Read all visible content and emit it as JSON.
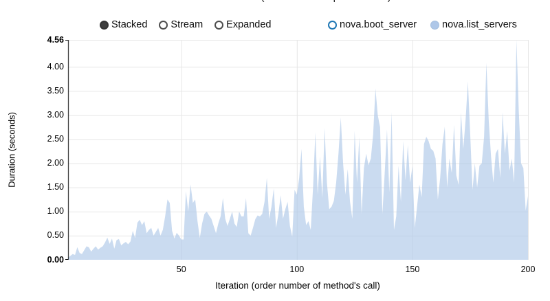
{
  "title_clipped": "Durations (atomic actions per iteration)",
  "controls": {
    "items": [
      {
        "label": "Stacked",
        "selected": true
      },
      {
        "label": "Stream",
        "selected": false
      },
      {
        "label": "Expanded",
        "selected": false
      }
    ]
  },
  "legend": {
    "items": [
      {
        "label": "nova.boot_server",
        "color": "#1f77b4",
        "enabled": false
      },
      {
        "label": "nova.list_servers",
        "color": "#aec7e8",
        "enabled": true
      }
    ]
  },
  "colors": {
    "area_fill": "#aec7e8",
    "area_fill_opacity": 0.65,
    "gridline": "#e6e6e6",
    "axis_line": "#000000",
    "boot_server_accent": "#1f77b4"
  },
  "chart_data": {
    "type": "area",
    "title": "",
    "xlabel": "Iteration (order number of method's call)",
    "ylabel": "Duration (seconds)",
    "x_range": [
      1,
      200
    ],
    "y_range": [
      0,
      4.56
    ],
    "grid": true,
    "legend_position": "top",
    "x_ticks": [
      {
        "label": "50",
        "value": 50
      },
      {
        "label": "100",
        "value": 100
      },
      {
        "label": "150",
        "value": 150
      },
      {
        "label": "200",
        "value": 200
      }
    ],
    "y_ticks": [
      {
        "label": "0.00",
        "value": 0,
        "bold": true
      },
      {
        "label": "0.50",
        "value": 0.5
      },
      {
        "label": "1.00",
        "value": 1.0
      },
      {
        "label": "1.50",
        "value": 1.5
      },
      {
        "label": "2.00",
        "value": 2.0
      },
      {
        "label": "2.50",
        "value": 2.5
      },
      {
        "label": "3.00",
        "value": 3.0
      },
      {
        "label": "3.50",
        "value": 3.5
      },
      {
        "label": "4.00",
        "value": 4.0
      },
      {
        "label": "4.56",
        "value": 4.56,
        "bold": true
      }
    ],
    "series": [
      {
        "name": "nova.boot_server",
        "color": "#1f77b4",
        "enabled": false,
        "values": []
      },
      {
        "name": "nova.list_servers",
        "color": "#aec7e8",
        "enabled": true,
        "values": [
          0.05,
          0.08,
          0.12,
          0.1,
          0.26,
          0.14,
          0.12,
          0.2,
          0.28,
          0.26,
          0.17,
          0.23,
          0.28,
          0.21,
          0.25,
          0.28,
          0.36,
          0.46,
          0.33,
          0.44,
          0.23,
          0.41,
          0.43,
          0.3,
          0.34,
          0.37,
          0.32,
          0.38,
          0.6,
          0.45,
          0.77,
          0.83,
          0.72,
          0.8,
          0.55,
          0.62,
          0.66,
          0.5,
          0.58,
          0.66,
          0.5,
          0.62,
          0.9,
          1.25,
          1.18,
          0.6,
          0.44,
          0.56,
          0.5,
          0.42,
          0.42,
          1.42,
          1.0,
          1.56,
          1.18,
          1.25,
          0.8,
          0.45,
          0.75,
          0.95,
          1.0,
          0.92,
          0.85,
          0.7,
          0.55,
          0.75,
          0.9,
          1.28,
          0.85,
          0.7,
          0.85,
          1.0,
          0.75,
          0.68,
          1.0,
          0.9,
          0.9,
          1.28,
          0.55,
          0.5,
          0.66,
          0.84,
          0.92,
          0.9,
          0.95,
          1.2,
          1.7,
          0.85,
          1.1,
          1.48,
          0.66,
          0.95,
          1.34,
          0.85,
          1.05,
          1.2,
          0.7,
          0.48,
          1.45,
          1.35,
          1.7,
          2.3,
          1.1,
          0.72,
          0.8,
          0.62,
          1.5,
          2.64,
          1.35,
          2.14,
          1.28,
          2.74,
          1.6,
          1.05,
          1.1,
          1.22,
          1.6,
          2.2,
          2.95,
          2.0,
          1.35,
          1.88,
          1.2,
          0.85,
          2.67,
          1.6,
          2.54,
          0.95,
          1.9,
          2.2,
          1.96,
          2.1,
          2.6,
          3.55,
          3.0,
          2.75,
          0.95,
          1.8,
          2.7,
          1.4,
          3.06,
          0.62,
          0.9,
          1.95,
          1.2,
          2.46,
          1.65,
          2.38,
          1.6,
          1.94,
          0.66,
          1.1,
          1.56,
          1.3,
          2.4,
          2.55,
          2.46,
          2.3,
          2.26,
          2.1,
          1.25,
          1.7,
          2.4,
          2.76,
          1.5,
          2.1,
          1.8,
          2.8,
          1.75,
          1.55,
          3.05,
          2.3,
          2.9,
          3.7,
          2.6,
          1.45,
          2.0,
          1.5,
          1.95,
          2.0,
          2.55,
          4.08,
          2.9,
          2.15,
          1.6,
          2.2,
          2.3,
          1.7,
          3.06,
          2.2,
          2.67,
          1.85,
          2.1,
          1.6,
          4.56,
          3.1,
          2.0,
          1.9,
          1.02,
          1.32
        ]
      }
    ]
  }
}
